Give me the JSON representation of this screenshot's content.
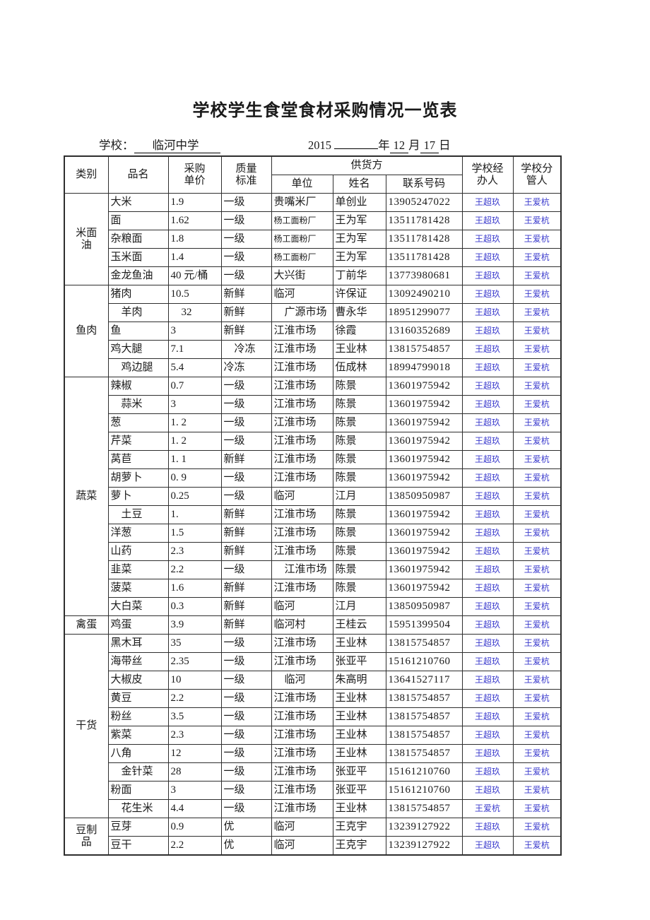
{
  "page": {
    "title": "学校学生食堂食材采购情况一览表"
  },
  "subheader": {
    "school_label": "学校：",
    "school_value": "临河中学",
    "year_value": "2015",
    "year_suffix": "年",
    "month_value": "12",
    "month_suffix": "月",
    "day_value": "17",
    "day_suffix": "日"
  },
  "colors": {
    "signature_blue": "#3a3acd",
    "text_black": "#1a1a1a"
  },
  "table": {
    "headers": {
      "category": "类别",
      "product": "品名",
      "price": "采购\n单价",
      "quality": "质量\n标准",
      "supplier": "供货方",
      "unit": "单位",
      "contact": "姓名",
      "phone": "联系号码",
      "handler": "学校经\n办人",
      "supervisor": "学校分\n管人"
    },
    "sections": [
      {
        "category": "米面\n油",
        "rows": [
          {
            "product": "大米",
            "price": "1.9",
            "quality": "一级",
            "unit": "贵嘴米厂",
            "contact": "单创业",
            "phone": "13905247022",
            "handler": "王超玖",
            "supervisor": "王爱杭"
          },
          {
            "product": "面",
            "price": "1.62",
            "quality": "一级",
            "unit": "杨工面粉厂",
            "unit_small": true,
            "contact": "王为军",
            "phone": "13511781428",
            "handler": "王超玖",
            "supervisor": "王爱杭"
          },
          {
            "product": "杂粮面",
            "price": "1.8",
            "quality": "一级",
            "unit": "杨工面粉厂",
            "unit_small": true,
            "contact": "王为军",
            "phone": "13511781428",
            "handler": "王超玖",
            "supervisor": "王爱杭"
          },
          {
            "product": "玉米面",
            "price": "1.4",
            "quality": "一级",
            "unit": "杨工面粉厂",
            "unit_small": true,
            "contact": "王为军",
            "phone": "13511781428",
            "handler": "王超玖",
            "supervisor": "王爱杭"
          },
          {
            "product": "金龙鱼油",
            "price": "40 元/桶",
            "quality": "一级",
            "unit": "大兴街",
            "contact": "丁前华",
            "phone": "13773980681",
            "handler": "王超玖",
            "supervisor": "王爱杭"
          }
        ]
      },
      {
        "category": "鱼肉",
        "rows": [
          {
            "product": "猪肉",
            "price": "10.5",
            "quality": "新鲜",
            "unit": "临河",
            "contact": "许保证",
            "phone": "13092490210",
            "handler": "王超玖",
            "supervisor": "王爱杭"
          },
          {
            "product": "　羊肉",
            "price": "　32",
            "quality": "新鲜",
            "unit": "　广源市场",
            "contact": "曹永华",
            "phone": "18951299077",
            "handler": "王超玖",
            "supervisor": "王爱杭"
          },
          {
            "product": "鱼",
            "price": "3",
            "quality": "新鲜",
            "unit": "江淮市场",
            "contact": "徐霞",
            "phone": "13160352689",
            "handler": "王超玖",
            "supervisor": "王爱杭"
          },
          {
            "product": "鸡大腿",
            "price": "7.1",
            "quality": "　冷冻",
            "unit": "江淮市场",
            "contact": "王业林",
            "phone": "13815754857",
            "handler": "王超玖",
            "supervisor": "王爱杭"
          },
          {
            "product": "　鸡边腿",
            "price": "5.4",
            "quality": "冷冻",
            "unit": "江淮市场",
            "contact": "伍成林",
            "phone": "18994799018",
            "handler": "王超玖",
            "supervisor": "王爱杭"
          }
        ]
      },
      {
        "category": "蔬菜",
        "rows": [
          {
            "product": "辣椒",
            "price": "0.7",
            "quality": "一级",
            "unit": "江淮市场",
            "contact": "陈景",
            "phone": "13601975942",
            "handler": "王超玖",
            "supervisor": "王爱杭"
          },
          {
            "product": "　蒜米",
            "price": "3",
            "quality": "一级",
            "unit": "江淮市场",
            "contact": "陈景",
            "phone": "13601975942",
            "handler": "王超玖",
            "supervisor": "王爱杭"
          },
          {
            "product": "葱",
            "price": "1. 2",
            "quality": "一级",
            "unit": "江淮市场",
            "contact": "陈景",
            "phone": "13601975942",
            "handler": "王超玖",
            "supervisor": "王爱杭"
          },
          {
            "product": "芹菜",
            "price": "1. 2",
            "quality": "一级",
            "unit": "江淮市场",
            "contact": "陈景",
            "phone": "13601975942",
            "handler": "王超玖",
            "supervisor": "王爱杭"
          },
          {
            "product": "莴苣",
            "price": "1. 1",
            "quality": "新鲜",
            "unit": "江淮市场",
            "contact": "陈景",
            "phone": "13601975942",
            "handler": "王超玖",
            "supervisor": "王爱杭"
          },
          {
            "product": "胡萝卜",
            "price": "0. 9",
            "quality": "一级",
            "unit": "江淮市场",
            "contact": "陈景",
            "phone": "13601975942",
            "handler": "王超玖",
            "supervisor": "王爱杭"
          },
          {
            "product": "萝卜",
            "price": "0.25",
            "quality": "一级",
            "unit": "临河",
            "contact": "江月",
            "phone": "13850950987",
            "handler": "王超玖",
            "supervisor": "王爱杭"
          },
          {
            "product": "　土豆",
            "price": "1.",
            "quality": "新鲜",
            "unit": "江淮市场",
            "contact": "陈景",
            "phone": "13601975942",
            "handler": "王超玖",
            "supervisor": "王爱杭"
          },
          {
            "product": "洋葱",
            "price": "1.5",
            "quality": "新鲜",
            "unit": "江淮市场",
            "contact": "陈景",
            "phone": "13601975942",
            "handler": "王超玖",
            "supervisor": "王爱杭"
          },
          {
            "product": "山药",
            "price": "2.3",
            "quality": "新鲜",
            "unit": "江淮市场",
            "contact": "陈景",
            "phone": "13601975942",
            "handler": "王超玖",
            "supervisor": "王爱杭"
          },
          {
            "product": "韭菜",
            "price": "2.2",
            "quality": "一级",
            "unit": "　江淮市场",
            "contact": "陈景",
            "phone": "13601975942",
            "handler": "王超玖",
            "supervisor": "王爱杭"
          },
          {
            "product": "菠菜",
            "price": "1.6",
            "quality": "新鲜",
            "unit": "江淮市场",
            "contact": "陈景",
            "phone": "13601975942",
            "handler": "王超玖",
            "supervisor": "王爱杭"
          },
          {
            "product": "大白菜",
            "price": "0.3",
            "quality": "新鲜",
            "unit": "临河",
            "contact": "江月",
            "phone": "13850950987",
            "handler": "王超玖",
            "supervisor": "王爱杭"
          }
        ]
      },
      {
        "category": "禽蛋",
        "rows": [
          {
            "product": "鸡蛋",
            "price": "3.9",
            "quality": "新鲜",
            "unit": "临河村",
            "contact": "王桂云",
            "phone": "15951399504",
            "handler": "王超玖",
            "supervisor": "王爱杭"
          }
        ]
      },
      {
        "category": "干货",
        "rows": [
          {
            "product": "黑木耳",
            "price": "35",
            "quality": "一级",
            "unit": "江淮市场",
            "contact": "王业林",
            "phone": "13815754857",
            "handler": "王超玖",
            "supervisor": "王爱杭"
          },
          {
            "product": "海带丝",
            "price": "2.35",
            "quality": "一级",
            "unit": "江淮市场",
            "contact": "张亚平",
            "phone": "15161210760",
            "handler": "王超玖",
            "supervisor": "王爱杭"
          },
          {
            "product": "大椒皮",
            "bold": true,
            "price": "10",
            "quality": "一级",
            "unit": "　临河",
            "contact": "朱高明",
            "phone": "13641527117",
            "handler": "王超玖",
            "supervisor": "王爱杭"
          },
          {
            "product": "黄豆",
            "price": "2.2",
            "quality": "一级",
            "unit": "江淮市场",
            "contact": "王业林",
            "phone": "13815754857",
            "handler": "王超玖",
            "supervisor": "王爱杭"
          },
          {
            "product": "粉丝",
            "price": "3.5",
            "quality": "一级",
            "unit": "江淮市场",
            "contact": "王业林",
            "phone": "13815754857",
            "handler": "王超玖",
            "supervisor": "王爱杭"
          },
          {
            "product": "紫菜",
            "price": "2.3",
            "quality": "一级",
            "unit": "江淮市场",
            "contact": "王业林",
            "phone": "13815754857",
            "handler": "王超玖",
            "supervisor": "王爱杭"
          },
          {
            "product": "八角",
            "price": "12",
            "quality": "一级",
            "unit": "江淮市场",
            "contact": "王业林",
            "phone": "13815754857",
            "handler": "王超玖",
            "supervisor": "王爱杭"
          },
          {
            "product": "　金针菜",
            "price": "28",
            "quality": "一级",
            "unit": "江淮市场",
            "contact": "张亚平",
            "phone": "15161210760",
            "handler": "王超玖",
            "supervisor": "王爱杭"
          },
          {
            "product": "粉面",
            "price": "3",
            "quality": "一级",
            "unit": "江淮市场",
            "contact": "张亚平",
            "phone": "15161210760",
            "handler": "王超玖",
            "supervisor": "王爱杭"
          },
          {
            "product": "　花生米",
            "price": "4.4",
            "quality": "一级",
            "unit": "江淮市场",
            "contact": "王业林",
            "phone": "13815754857",
            "handler": "王爱杭",
            "supervisor": "王爱杭"
          }
        ]
      },
      {
        "category": "豆制\n品",
        "rows": [
          {
            "product": "豆芽",
            "price": "0.9",
            "quality": "优",
            "unit": "临河",
            "contact": "王克宇",
            "phone": "13239127922",
            "handler": "王超玖",
            "supervisor": "王爱杭"
          },
          {
            "product": "豆干",
            "price": "2.2",
            "quality": "优",
            "unit": "临河",
            "contact": "王克宇",
            "phone": "13239127922",
            "handler": "王超玖",
            "supervisor": "王爱杭"
          }
        ]
      }
    ]
  }
}
